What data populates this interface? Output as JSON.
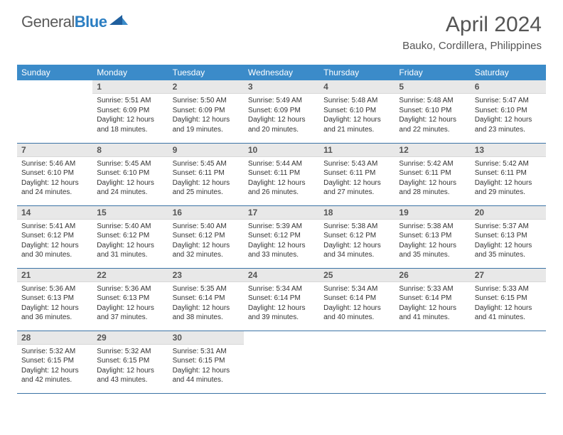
{
  "logo": {
    "general": "General",
    "blue": "Blue"
  },
  "title": {
    "month": "April 2024",
    "location": "Bauko, Cordillera, Philippines"
  },
  "colors": {
    "header_bg": "#3b8bc9",
    "row_border": "#3b73a5",
    "daynum_bg": "#e8e8e8",
    "text_gray": "#555555",
    "logo_blue": "#2b7ec2"
  },
  "daysOfWeek": [
    "Sunday",
    "Monday",
    "Tuesday",
    "Wednesday",
    "Thursday",
    "Friday",
    "Saturday"
  ],
  "weeks": [
    [
      {
        "n": "",
        "empty": true
      },
      {
        "n": "1",
        "sunrise": "5:51 AM",
        "sunset": "6:09 PM",
        "dl1": "12 hours",
        "dl2": "and 18 minutes."
      },
      {
        "n": "2",
        "sunrise": "5:50 AM",
        "sunset": "6:09 PM",
        "dl1": "12 hours",
        "dl2": "and 19 minutes."
      },
      {
        "n": "3",
        "sunrise": "5:49 AM",
        "sunset": "6:09 PM",
        "dl1": "12 hours",
        "dl2": "and 20 minutes."
      },
      {
        "n": "4",
        "sunrise": "5:48 AM",
        "sunset": "6:10 PM",
        "dl1": "12 hours",
        "dl2": "and 21 minutes."
      },
      {
        "n": "5",
        "sunrise": "5:48 AM",
        "sunset": "6:10 PM",
        "dl1": "12 hours",
        "dl2": "and 22 minutes."
      },
      {
        "n": "6",
        "sunrise": "5:47 AM",
        "sunset": "6:10 PM",
        "dl1": "12 hours",
        "dl2": "and 23 minutes."
      }
    ],
    [
      {
        "n": "7",
        "sunrise": "5:46 AM",
        "sunset": "6:10 PM",
        "dl1": "12 hours",
        "dl2": "and 24 minutes."
      },
      {
        "n": "8",
        "sunrise": "5:45 AM",
        "sunset": "6:10 PM",
        "dl1": "12 hours",
        "dl2": "and 24 minutes."
      },
      {
        "n": "9",
        "sunrise": "5:45 AM",
        "sunset": "6:11 PM",
        "dl1": "12 hours",
        "dl2": "and 25 minutes."
      },
      {
        "n": "10",
        "sunrise": "5:44 AM",
        "sunset": "6:11 PM",
        "dl1": "12 hours",
        "dl2": "and 26 minutes."
      },
      {
        "n": "11",
        "sunrise": "5:43 AM",
        "sunset": "6:11 PM",
        "dl1": "12 hours",
        "dl2": "and 27 minutes."
      },
      {
        "n": "12",
        "sunrise": "5:42 AM",
        "sunset": "6:11 PM",
        "dl1": "12 hours",
        "dl2": "and 28 minutes."
      },
      {
        "n": "13",
        "sunrise": "5:42 AM",
        "sunset": "6:11 PM",
        "dl1": "12 hours",
        "dl2": "and 29 minutes."
      }
    ],
    [
      {
        "n": "14",
        "sunrise": "5:41 AM",
        "sunset": "6:12 PM",
        "dl1": "12 hours",
        "dl2": "and 30 minutes."
      },
      {
        "n": "15",
        "sunrise": "5:40 AM",
        "sunset": "6:12 PM",
        "dl1": "12 hours",
        "dl2": "and 31 minutes."
      },
      {
        "n": "16",
        "sunrise": "5:40 AM",
        "sunset": "6:12 PM",
        "dl1": "12 hours",
        "dl2": "and 32 minutes."
      },
      {
        "n": "17",
        "sunrise": "5:39 AM",
        "sunset": "6:12 PM",
        "dl1": "12 hours",
        "dl2": "and 33 minutes."
      },
      {
        "n": "18",
        "sunrise": "5:38 AM",
        "sunset": "6:12 PM",
        "dl1": "12 hours",
        "dl2": "and 34 minutes."
      },
      {
        "n": "19",
        "sunrise": "5:38 AM",
        "sunset": "6:13 PM",
        "dl1": "12 hours",
        "dl2": "and 35 minutes."
      },
      {
        "n": "20",
        "sunrise": "5:37 AM",
        "sunset": "6:13 PM",
        "dl1": "12 hours",
        "dl2": "and 35 minutes."
      }
    ],
    [
      {
        "n": "21",
        "sunrise": "5:36 AM",
        "sunset": "6:13 PM",
        "dl1": "12 hours",
        "dl2": "and 36 minutes."
      },
      {
        "n": "22",
        "sunrise": "5:36 AM",
        "sunset": "6:13 PM",
        "dl1": "12 hours",
        "dl2": "and 37 minutes."
      },
      {
        "n": "23",
        "sunrise": "5:35 AM",
        "sunset": "6:14 PM",
        "dl1": "12 hours",
        "dl2": "and 38 minutes."
      },
      {
        "n": "24",
        "sunrise": "5:34 AM",
        "sunset": "6:14 PM",
        "dl1": "12 hours",
        "dl2": "and 39 minutes."
      },
      {
        "n": "25",
        "sunrise": "5:34 AM",
        "sunset": "6:14 PM",
        "dl1": "12 hours",
        "dl2": "and 40 minutes."
      },
      {
        "n": "26",
        "sunrise": "5:33 AM",
        "sunset": "6:14 PM",
        "dl1": "12 hours",
        "dl2": "and 41 minutes."
      },
      {
        "n": "27",
        "sunrise": "5:33 AM",
        "sunset": "6:15 PM",
        "dl1": "12 hours",
        "dl2": "and 41 minutes."
      }
    ],
    [
      {
        "n": "28",
        "sunrise": "5:32 AM",
        "sunset": "6:15 PM",
        "dl1": "12 hours",
        "dl2": "and 42 minutes."
      },
      {
        "n": "29",
        "sunrise": "5:32 AM",
        "sunset": "6:15 PM",
        "dl1": "12 hours",
        "dl2": "and 43 minutes."
      },
      {
        "n": "30",
        "sunrise": "5:31 AM",
        "sunset": "6:15 PM",
        "dl1": "12 hours",
        "dl2": "and 44 minutes."
      },
      {
        "n": "",
        "empty": true
      },
      {
        "n": "",
        "empty": true
      },
      {
        "n": "",
        "empty": true
      },
      {
        "n": "",
        "empty": true
      }
    ]
  ],
  "labels": {
    "sunrise": "Sunrise:",
    "sunset": "Sunset:",
    "daylight": "Daylight:"
  }
}
